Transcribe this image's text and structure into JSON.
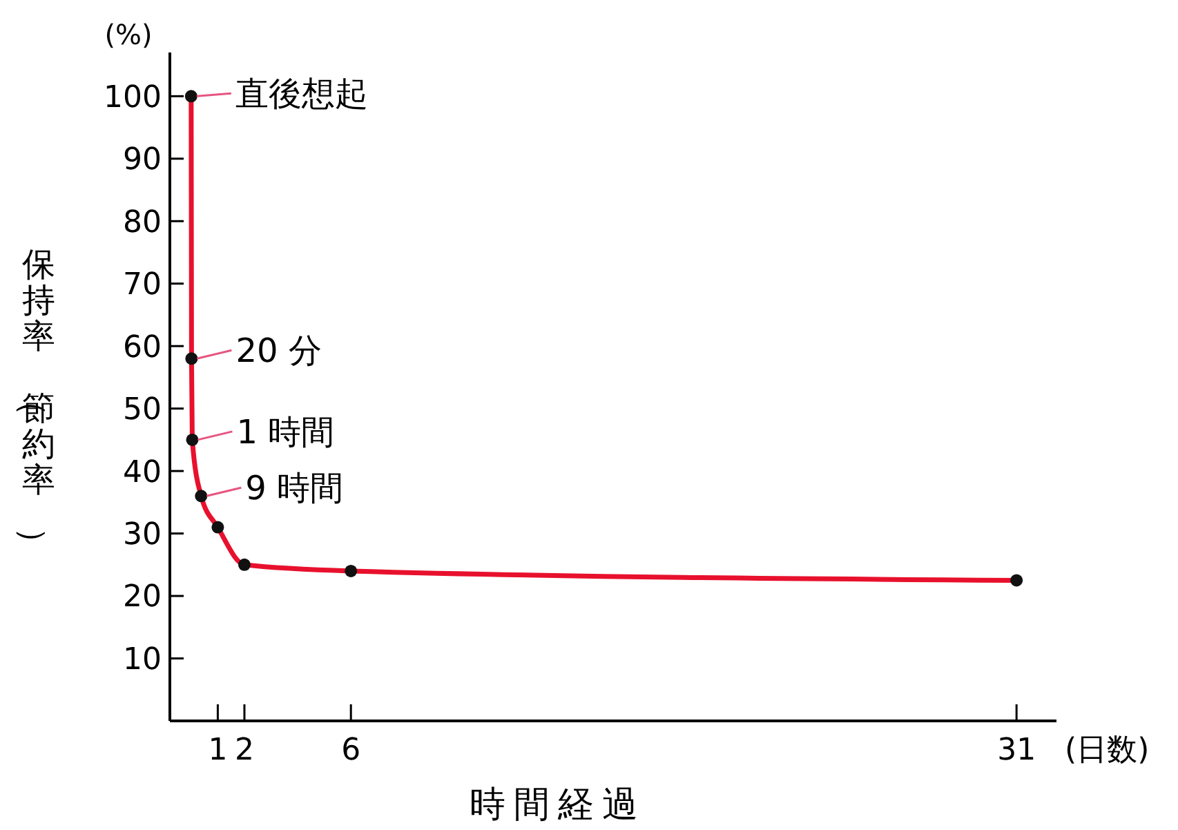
{
  "chart_data": {
    "type": "line",
    "xlabel": "時間経過",
    "ylabel": "保持率（節約率）",
    "x": [
      0,
      0.0139,
      0.0417,
      0.375,
      1,
      2,
      6,
      31
    ],
    "series": [
      {
        "color": "#e8112d",
        "values": [
          100,
          58,
          45,
          36,
          31,
          25,
          24,
          22.5
        ]
      }
    ],
    "xlim": [
      -0.8,
      32.5
    ],
    "xticks": [
      1,
      2,
      6,
      31
    ],
    "ylim": [
      0,
      107
    ],
    "yticks": [
      10,
      20,
      30,
      40,
      50,
      60,
      70,
      80,
      90,
      100
    ],
    "marker": "circle",
    "line_style": "solid",
    "grid": false,
    "annotations": [
      {
        "text": "直後想起",
        "x": 0,
        "y": 100
      },
      {
        "text": "20 分",
        "x": 0.0139,
        "y": 58
      },
      {
        "text": "1 時間",
        "x": 0.0417,
        "y": 45
      },
      {
        "text": "9 時間",
        "x": 0.375,
        "y": 36
      },
      "(%)",
      "(日数)"
    ]
  }
}
